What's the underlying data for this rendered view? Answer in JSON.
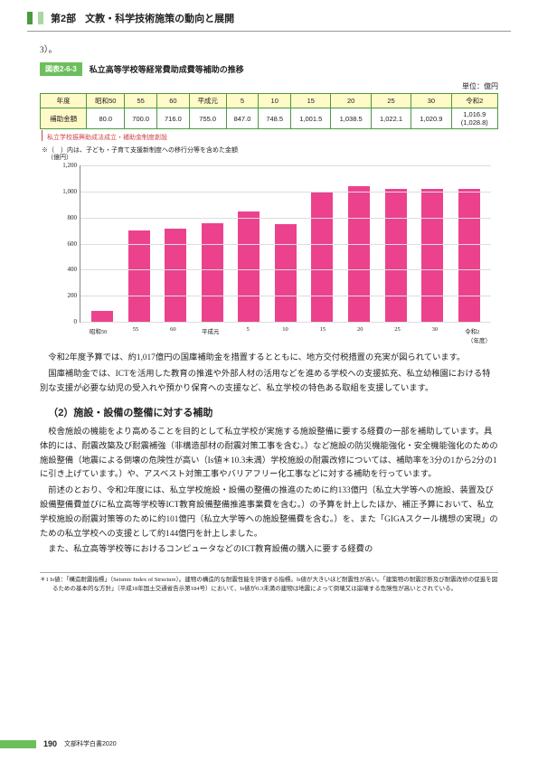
{
  "header": {
    "part": "第2部",
    "title": "文教・科学技術施策の動向と展開"
  },
  "three": "3）。",
  "figure": {
    "tag": "図表2-6-3",
    "title": "私立高等学校等経常費助成費等補助の推移",
    "unit": "単位：億円"
  },
  "table": {
    "headers": [
      "年度",
      "昭和50",
      "55",
      "60",
      "平成元",
      "5",
      "10",
      "15",
      "20",
      "25",
      "30",
      "令和2"
    ],
    "row_label": "補助金額",
    "cells": [
      "80.0",
      "700.0",
      "716.0",
      "755.0",
      "847.0",
      "748.5",
      "1,001.5",
      "1,038.5",
      "1,022.1",
      "1,020.9",
      "1,016.9\n(1,028.8)"
    ],
    "note_red": "私立学校振興助成法成立・補助金制度創設",
    "note_foot": "※（　）内は、子ども・子育て支援新制度への移行分等を含めた金額"
  },
  "chart": {
    "y_label": "（億円）",
    "ymax": 1200,
    "y_ticks": [
      0,
      200,
      400,
      600,
      800,
      1000,
      1200
    ],
    "gridline_color": "#dddddd",
    "axis_color": "#888888",
    "bar_color": "#ec428d",
    "background_color": "#ffffff",
    "x_labels": [
      "昭和50",
      "55",
      "60",
      "平成元",
      "5",
      "10",
      "15",
      "20",
      "25",
      "30",
      "令和2"
    ],
    "values": [
      80,
      700,
      716,
      755,
      847,
      748.5,
      1001.5,
      1038.5,
      1022.1,
      1020.9,
      1016.9
    ],
    "x_unit": "（年度）"
  },
  "body": {
    "p1": "令和2年度予算では、約1,017億円の国庫補助金を措置するとともに、地方交付税措置の充実が図られています。",
    "p2": "国庫補助金では、ICTを活用した教育の推進や外部人材の活用などを進める学校への支援拡充、私立幼稚園における特別な支援が必要な幼児の受入れや預かり保育への支援など、私立学校の特色ある取組を支援しています。",
    "head2": "（2）施設・設備の整備に対する補助",
    "p3": "校舎施設の機能をより高めることを目的として私立学校が実施する施設整備に要する経費の一部を補助しています。具体的には、耐震改築及び耐震補強（非構造部材の耐震対策工事を含む。）など施設の防災機能強化・安全機能強化のための施設整備（地震による倒壊の危険性が高い（Is値＊10.3未満）学校施設の耐震改修については、補助率を3分の1から2分の1に引き上げています。）や、アスベスト対策工事やバリアフリー化工事などに対する補助を行っています。",
    "p4": "前述のとおり、令和2年度には、私立学校施設・設備の整備の推進のために約133億円（私立大学等への施設、装置及び設備整備費並びに私立高等学校等ICT教育設備整備推進事業費を含む。）の予算を計上したほか、補正予算において、私立学校施設の耐震対策等のために約101億円（私立大学等への施設整備費を含む。）を、また「GIGAスクール構想の実現」のための私立学校への支援として約144億円を計上しました。",
    "p5": "また、私立高等学校等におけるコンピュータなどのICT教育設備の購入に要する経費の"
  },
  "footnote": {
    "text": "＊1 Is値：「構造耐震指標」（Seismic Index of Structure）。建物の構造的な耐震性能を評価する指標。Is値が大きいほど耐震性が高い。「建築物の耐震診断及び耐震改修の促進を図るための基本的な方針」（平成18年国土交通省告示第184号）において、Is値が0.3未満の建物は地震によって倒壊又は崩壊する危険性が高いとされている。"
  },
  "footer": {
    "page": "190",
    "doc": "文部科学白書2020"
  }
}
